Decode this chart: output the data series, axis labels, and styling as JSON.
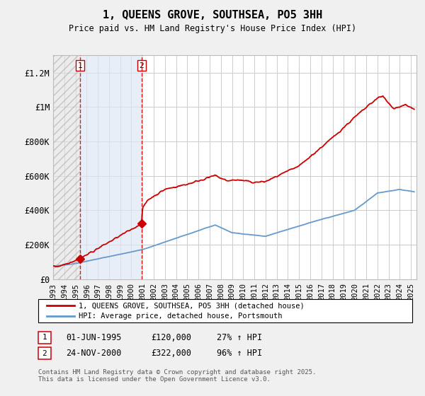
{
  "title": "1, QUEENS GROVE, SOUTHSEA, PO5 3HH",
  "subtitle": "Price paid vs. HM Land Registry's House Price Index (HPI)",
  "ylim": [
    0,
    1300000
  ],
  "yticks": [
    0,
    200000,
    400000,
    600000,
    800000,
    1000000,
    1200000
  ],
  "ytick_labels": [
    "£0",
    "£200K",
    "£400K",
    "£600K",
    "£800K",
    "£1M",
    "£1.2M"
  ],
  "sale1_date_num": 1995.42,
  "sale1_price": 120000,
  "sale2_date_num": 2000.9,
  "sale2_price": 322000,
  "legend_line1": "1, QUEENS GROVE, SOUTHSEA, PO5 3HH (detached house)",
  "legend_line2": "HPI: Average price, detached house, Portsmouth",
  "table_row1": [
    "1",
    "01-JUN-1995",
    "£120,000",
    "27% ↑ HPI"
  ],
  "table_row2": [
    "2",
    "24-NOV-2000",
    "£322,000",
    "96% ↑ HPI"
  ],
  "footnote": "Contains HM Land Registry data © Crown copyright and database right 2025.\nThis data is licensed under the Open Government Licence v3.0.",
  "hatch_start": 1993.0,
  "hatch_end": 1995.42,
  "shade_start": 1995.42,
  "shade_end": 2000.9,
  "line_color_red": "#cc0000",
  "line_color_blue": "#6699cc",
  "bg_color": "#f0f0f0",
  "plot_bg": "#ffffff",
  "xlim_start": 1993.0,
  "xlim_end": 2025.5
}
